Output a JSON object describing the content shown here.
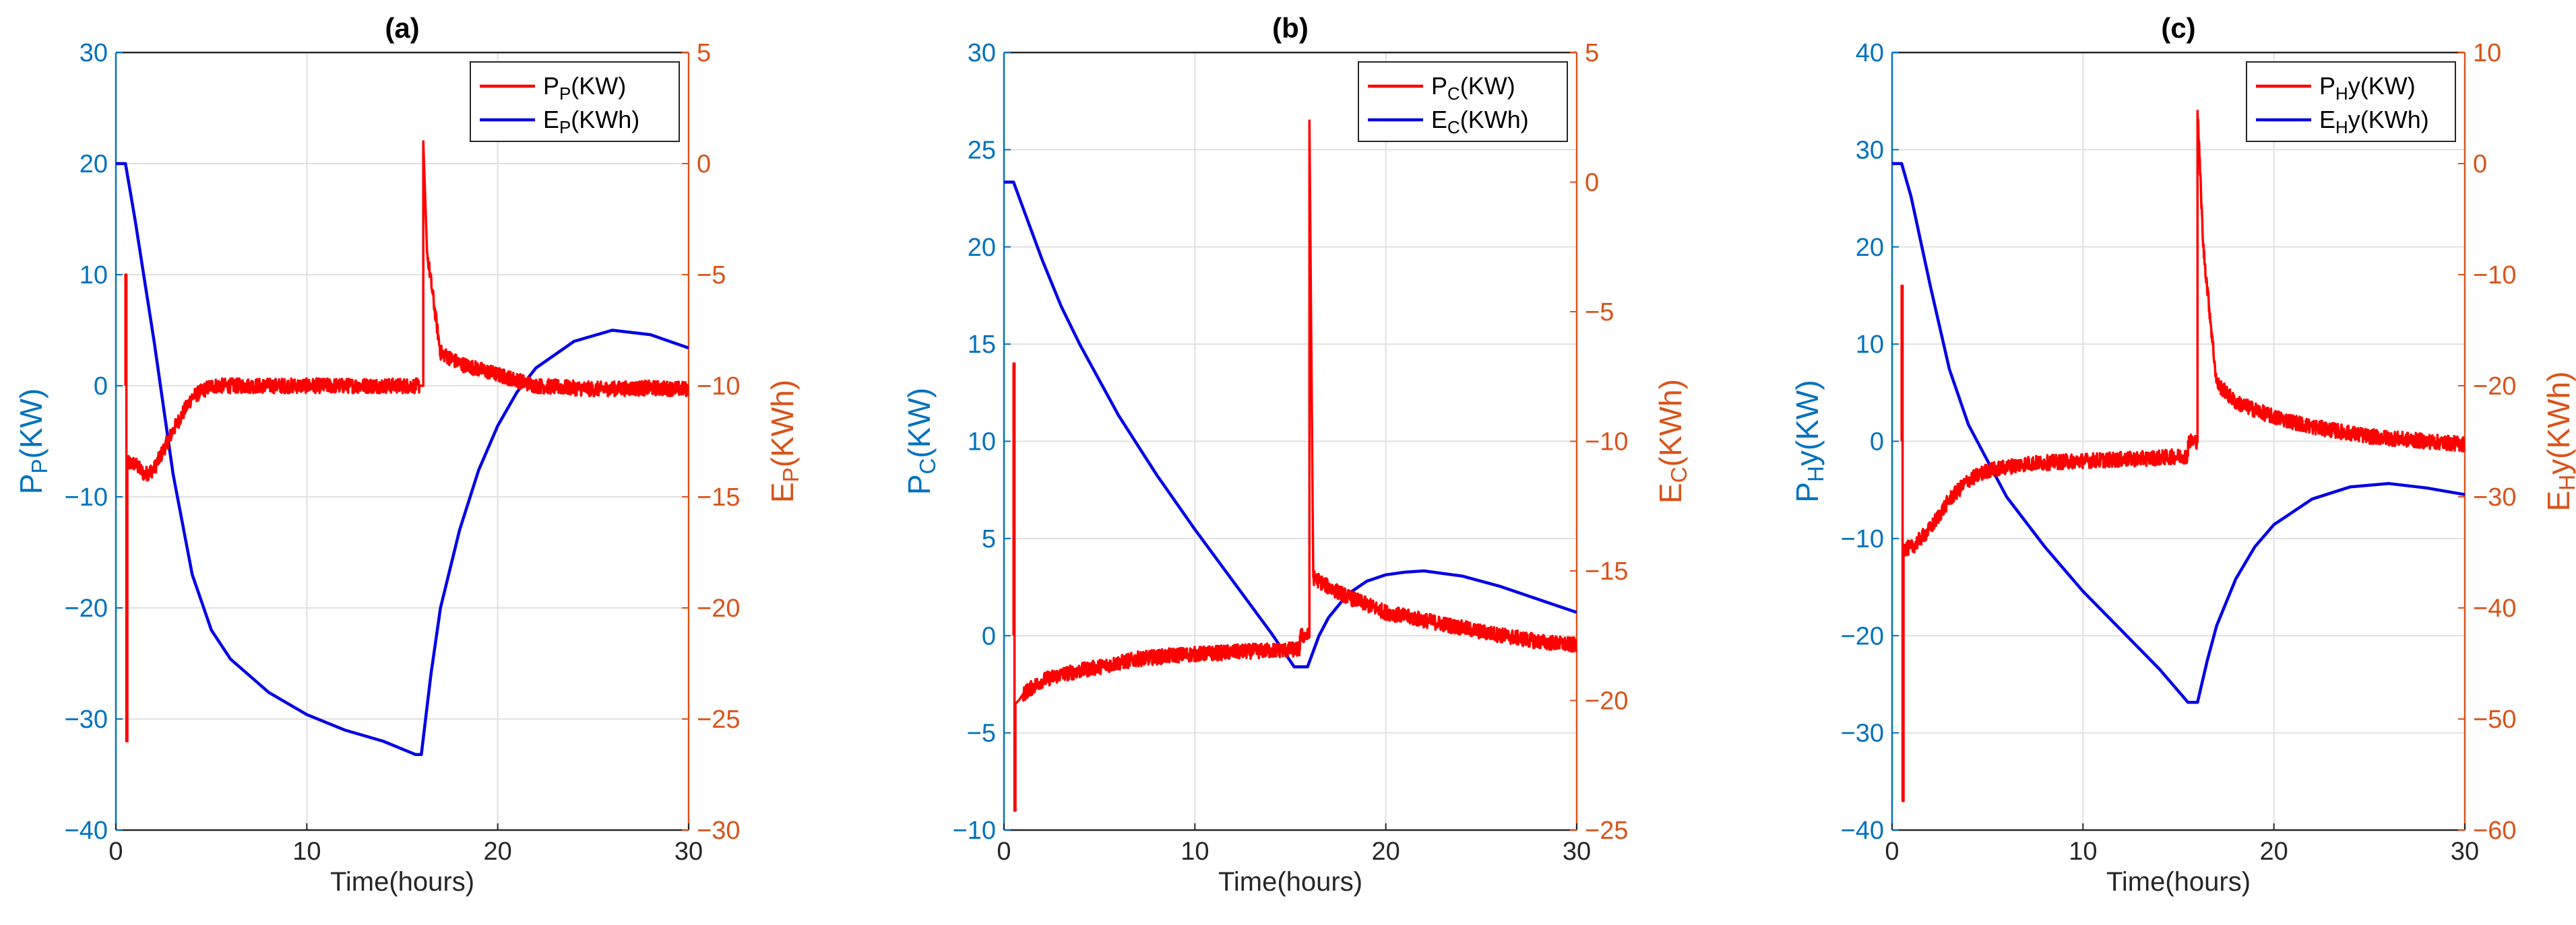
{
  "colors": {
    "left_axis": "#0072BD",
    "right_axis": "#D95319",
    "power_series": "#FF0000",
    "energy_series": "#0000E6",
    "grid": "#E0E0E0"
  },
  "chart_data": [
    {
      "type": "line",
      "title": "(a)",
      "xlabel": "Time(hours)",
      "ylabel_left": {
        "main": "P",
        "sub": "P",
        "unit": "(KW)"
      },
      "ylabel_right": {
        "main": "E",
        "sub": "P",
        "unit": "(KWh)"
      },
      "xlim": [
        0,
        30
      ],
      "xticks": [
        0,
        10,
        20,
        30
      ],
      "ylim_left": [
        -40,
        30
      ],
      "yticks_left": [
        -40,
        -30,
        -20,
        -10,
        0,
        10,
        20,
        30
      ],
      "ylim_right": [
        -30,
        5
      ],
      "yticks_right": [
        -30,
        -25,
        -20,
        -15,
        -10,
        -5,
        0,
        5
      ],
      "grid": true,
      "legend_position": "top-right",
      "series": [
        {
          "name": "power",
          "label_main": "P",
          "label_sub": "P",
          "label_unit": "(KW)",
          "axis": "left",
          "noisy": true,
          "x": [
            0.5,
            0.5,
            0.55,
            0.55,
            0.6,
            0.6,
            1.0,
            1.5,
            2.0,
            3.0,
            4.0,
            5.0,
            7.0,
            10.0,
            13.0,
            15.9,
            15.9,
            16.1,
            16.1,
            16.3,
            17.0,
            18.0,
            20.0,
            22.0,
            25.0,
            28.0,
            30.0
          ],
          "y": [
            0,
            10,
            10,
            -32,
            -32,
            -7,
            -7,
            -8,
            -7.5,
            -4,
            -1,
            0,
            0,
            0,
            0,
            0,
            0,
            0,
            22,
            12,
            3,
            2,
            1,
            0,
            -0.3,
            -0.2,
            -0.3
          ]
        },
        {
          "name": "energy",
          "label_main": "E",
          "label_sub": "P",
          "label_unit": "(KWh)",
          "axis": "right",
          "noisy": false,
          "x": [
            0,
            0.5,
            1.0,
            2.0,
            3.0,
            4.0,
            5.0,
            6.0,
            8.0,
            10.0,
            12.0,
            14.0,
            15.7,
            16.0,
            16.5,
            17.0,
            18.0,
            19.0,
            20.0,
            21.0,
            22.0,
            24.0,
            26.0,
            28.0,
            30.0
          ],
          "y": [
            0,
            0,
            -2.5,
            -8,
            -14,
            -18.5,
            -21,
            -22.3,
            -23.8,
            -24.8,
            -25.5,
            -26,
            -26.6,
            -26.6,
            -23,
            -20,
            -16.5,
            -13.8,
            -11.8,
            -10.3,
            -9.2,
            -8,
            -7.5,
            -7.7,
            -8.3
          ]
        }
      ]
    },
    {
      "type": "line",
      "title": "(b)",
      "xlabel": "Time(hours)",
      "ylabel_left": {
        "main": "P",
        "sub": "C",
        "unit": "(KW)"
      },
      "ylabel_right": {
        "main": "E",
        "sub": "C",
        "unit": "(KWh)"
      },
      "xlim": [
        0,
        30
      ],
      "xticks": [
        0,
        10,
        20,
        30
      ],
      "ylim_left": [
        -10,
        30
      ],
      "yticks_left": [
        -10,
        -5,
        0,
        5,
        10,
        15,
        20,
        25,
        30
      ],
      "ylim_right": [
        -25,
        5
      ],
      "yticks_right": [
        -25,
        -20,
        -15,
        -10,
        -5,
        0,
        5
      ],
      "grid": true,
      "legend_position": "top-right",
      "series": [
        {
          "name": "power",
          "label_main": "P",
          "label_sub": "C",
          "label_unit": "(KW)",
          "axis": "left",
          "noisy": true,
          "x": [
            0.5,
            0.5,
            0.55,
            0.55,
            0.6,
            0.6,
            0.8,
            1.0,
            2.0,
            3.0,
            5.0,
            7.0,
            9.0,
            11.0,
            13.0,
            15.5,
            15.5,
            16.0,
            16.0,
            16.2,
            17.0,
            18.0,
            20.0,
            22.0,
            25.0,
            28.0,
            30.0
          ],
          "y": [
            0,
            14,
            14,
            -9,
            -9,
            -3.5,
            -3.3,
            -3,
            -2.3,
            -2,
            -1.6,
            -1.2,
            -1,
            -0.9,
            -0.8,
            -0.7,
            0,
            0,
            26.5,
            3,
            2.5,
            2,
            1.2,
            0.8,
            0.2,
            -0.3,
            -0.5
          ]
        },
        {
          "name": "energy",
          "label_main": "E",
          "label_sub": "C",
          "label_unit": "(KWh)",
          "axis": "right",
          "noisy": false,
          "x": [
            0,
            0.5,
            1.0,
            2.0,
            3.0,
            4.0,
            6.0,
            8.0,
            10.0,
            12.0,
            14.0,
            15.2,
            15.9,
            16.5,
            17.0,
            18.0,
            19.0,
            20.0,
            21.0,
            22.0,
            24.0,
            26.0,
            28.0,
            30.0
          ],
          "y": [
            0,
            0,
            -1,
            -3,
            -4.8,
            -6.3,
            -9,
            -11.3,
            -13.4,
            -15.4,
            -17.4,
            -18.7,
            -18.7,
            -17.5,
            -16.8,
            -15.9,
            -15.4,
            -15.15,
            -15.05,
            -15,
            -15.2,
            -15.6,
            -16.1,
            -16.6
          ]
        }
      ]
    },
    {
      "type": "line",
      "title": "(c)",
      "xlabel": "Time(hours)",
      "ylabel_left": {
        "main": "P",
        "sub": "H",
        "unit": "y(KW)"
      },
      "ylabel_right": {
        "main": "E",
        "sub": "H",
        "unit": "y(KWh)"
      },
      "xlim": [
        0,
        30
      ],
      "xticks": [
        0,
        10,
        20,
        30
      ],
      "ylim_left": [
        -40,
        40
      ],
      "yticks_left": [
        -40,
        -30,
        -20,
        -10,
        0,
        10,
        20,
        30,
        40
      ],
      "ylim_right": [
        -60,
        10
      ],
      "yticks_right": [
        -60,
        -50,
        -40,
        -30,
        -20,
        -10,
        0,
        10
      ],
      "grid": true,
      "legend_position": "top-right",
      "series": [
        {
          "name": "power",
          "label_main": "P",
          "label_sub": "H",
          "label_unit": "y(KW)",
          "axis": "left",
          "noisy": true,
          "x": [
            0.5,
            0.5,
            0.55,
            0.55,
            0.6,
            0.6,
            1.0,
            1.5,
            2.0,
            3.0,
            4.0,
            5.0,
            7.0,
            10.0,
            13.0,
            15.5,
            15.5,
            16.0,
            16.0,
            16.3,
            17.0,
            18.0,
            20.0,
            22.0,
            25.0,
            28.0,
            30.0
          ],
          "y": [
            0,
            16,
            16,
            -37,
            -37,
            -11,
            -11,
            -10,
            -9,
            -6,
            -4,
            -3,
            -2.3,
            -2,
            -1.8,
            -1.5,
            0,
            0,
            34,
            20,
            6,
            4,
            2.5,
            1.5,
            0.5,
            0,
            -0.3
          ]
        },
        {
          "name": "energy",
          "label_main": "E",
          "label_sub": "H",
          "label_unit": "y(KWh)",
          "axis": "right",
          "noisy": false,
          "x": [
            0,
            0.5,
            1.0,
            2.0,
            3.0,
            4.0,
            6.0,
            8.0,
            10.0,
            12.0,
            14.0,
            15.5,
            16.0,
            16.5,
            17.0,
            18.0,
            19.0,
            20.0,
            22.0,
            24.0,
            26.0,
            28.0,
            30.0
          ],
          "y": [
            0,
            0,
            -3,
            -11,
            -18.5,
            -23.5,
            -30,
            -34.5,
            -38.5,
            -42,
            -45.5,
            -48.5,
            -48.5,
            -44.8,
            -41.6,
            -37.4,
            -34.5,
            -32.5,
            -30.2,
            -29.1,
            -28.8,
            -29.2,
            -29.8
          ]
        }
      ]
    }
  ]
}
